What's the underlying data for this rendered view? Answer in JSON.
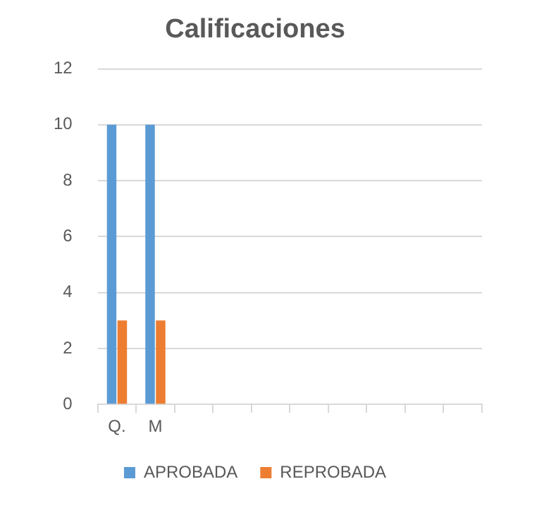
{
  "chart_data": {
    "type": "bar",
    "title": "Calificaciones",
    "categories": [
      "Q.",
      "M",
      null,
      null,
      null,
      null,
      null,
      null,
      null,
      null
    ],
    "series": [
      {
        "name": "APROBADA",
        "color": "#5b9bd5",
        "values": [
          10,
          10,
          null,
          null,
          null,
          null,
          null,
          null,
          null,
          null
        ]
      },
      {
        "name": "REPROBADA",
        "color": "#ed7d31",
        "values": [
          3,
          3,
          null,
          null,
          null,
          null,
          null,
          null,
          null,
          null
        ]
      }
    ],
    "ylim": [
      0,
      12
    ],
    "yticks": [
      0,
      2,
      4,
      6,
      8,
      10,
      12
    ],
    "grid": "y",
    "legend": "bottom"
  }
}
